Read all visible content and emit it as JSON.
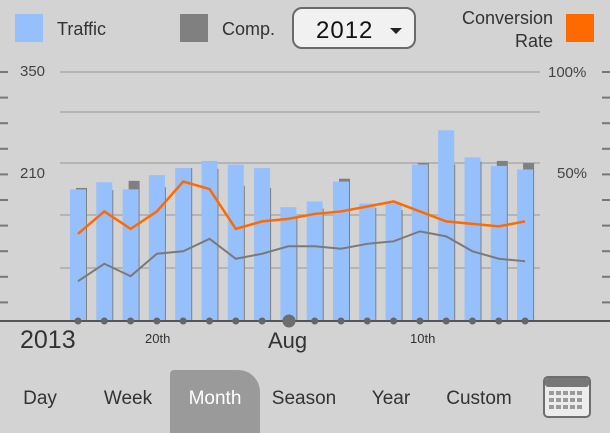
{
  "legend": {
    "traffic_label": "Traffic",
    "comp_label": "Comp.",
    "conversion_label_line1": "Conversion",
    "conversion_label_line2": "Rate",
    "traffic_color": "#95c0fb",
    "comp_color": "#808080",
    "conversion_color": "#ff6a00"
  },
  "year_select": {
    "value": "2012",
    "icon": "chevron-down-icon"
  },
  "bottom_axis": {
    "year_label": "2013",
    "label_20th": "20th",
    "label_aug": "Aug",
    "label_10th": "10th"
  },
  "tabs": [
    {
      "label": "Day",
      "active": false
    },
    {
      "label": "Week",
      "active": false
    },
    {
      "label": "Month",
      "active": true
    },
    {
      "label": "Season",
      "active": false
    },
    {
      "label": "Year",
      "active": false
    },
    {
      "label": "Custom",
      "active": false
    }
  ],
  "calendar_icon": "calendar-icon",
  "chart_data": {
    "type": "bar",
    "y_left_ticks": [
      "350",
      "210"
    ],
    "y_right_ticks": [
      "100%",
      "50%"
    ],
    "y_left_range": [
      0,
      350
    ],
    "y_right_range": [
      0,
      100
    ],
    "grid": true,
    "series": [
      {
        "name": "Traffic",
        "kind": "bar",
        "axis": "left",
        "values": [
          185,
          195,
          185,
          205,
          215,
          225,
          220,
          215,
          160,
          168,
          196,
          165,
          165,
          220,
          268,
          230,
          218,
          213
        ]
      },
      {
        "name": "Comp.",
        "kind": "bar",
        "axis": "left",
        "values": [
          187,
          184,
          197,
          188,
          215,
          214,
          190,
          187,
          145,
          158,
          200,
          159,
          156,
          222,
          220,
          224,
          225,
          222
        ]
      },
      {
        "name": "Conversion Rate",
        "kind": "line",
        "axis": "right",
        "values": [
          35,
          44,
          37,
          44,
          56,
          53,
          37,
          40,
          41,
          43,
          44,
          46,
          48,
          44,
          40,
          39,
          38,
          40
        ]
      },
      {
        "kind": "line",
        "axis": "right",
        "values": [
          16,
          23,
          18,
          27,
          28,
          33,
          25,
          27,
          30,
          30,
          29,
          31,
          32,
          36,
          34,
          28,
          25,
          24
        ]
      }
    ]
  }
}
